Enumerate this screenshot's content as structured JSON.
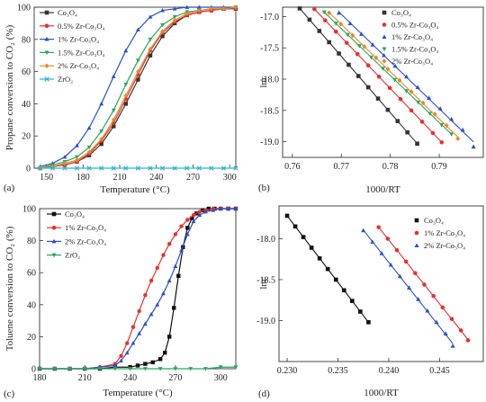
{
  "chart_data": [
    {
      "panel": "(a)",
      "type": "line",
      "xlabel": "Temperature (°C)",
      "ylabel": "Propane conversion to CO₂ (%)",
      "xlim": [
        140,
        305
      ],
      "ylim": [
        0,
        100
      ],
      "xticks": [
        150,
        180,
        210,
        240,
        270,
        300
      ],
      "yticks": [
        0,
        20,
        40,
        60,
        80,
        100
      ],
      "legend_position": "top-left",
      "series": [
        {
          "name": "Co₃O₄",
          "color": "#333333",
          "marker": "square",
          "x": [
            145,
            155,
            165,
            175,
            185,
            195,
            205,
            215,
            225,
            235,
            245,
            255,
            265,
            275,
            285,
            295,
            305
          ],
          "y": [
            0,
            1,
            2,
            4,
            8,
            15,
            26,
            40,
            55,
            70,
            82,
            90,
            95,
            97,
            98,
            99,
            99
          ]
        },
        {
          "name": "0.5% Zr-Co₃O₄",
          "color": "#e8302f",
          "marker": "circle",
          "x": [
            145,
            155,
            165,
            175,
            185,
            195,
            205,
            215,
            225,
            235,
            245,
            255,
            265,
            275,
            285,
            295,
            305
          ],
          "y": [
            0,
            1,
            2,
            4,
            9,
            17,
            28,
            43,
            58,
            73,
            84,
            91,
            95,
            97,
            98,
            99,
            99
          ]
        },
        {
          "name": "1% Zr-Co₃O₄",
          "color": "#2b4fc8",
          "marker": "triangle-up",
          "x": [
            145,
            155,
            165,
            175,
            185,
            195,
            205,
            215,
            225,
            235,
            245,
            255,
            265,
            275,
            285,
            295,
            305
          ],
          "y": [
            1,
            3,
            7,
            14,
            25,
            40,
            57,
            73,
            86,
            94,
            98,
            99,
            100,
            100,
            100,
            100,
            100
          ]
        },
        {
          "name": "1.5% Zr-Co₃O₄",
          "color": "#2aa65a",
          "marker": "triangle-down",
          "x": [
            145,
            155,
            165,
            175,
            185,
            195,
            205,
            215,
            225,
            235,
            245,
            255,
            265,
            275,
            285,
            295,
            305
          ],
          "y": [
            0,
            2,
            4,
            7,
            13,
            23,
            36,
            52,
            67,
            80,
            89,
            94,
            97,
            98,
            99,
            99,
            100
          ]
        },
        {
          "name": "2% Zr-Co₃O₄",
          "color": "#e38b2a",
          "marker": "diamond",
          "x": [
            145,
            155,
            165,
            175,
            185,
            195,
            205,
            215,
            225,
            235,
            245,
            255,
            265,
            275,
            285,
            295,
            305
          ],
          "y": [
            0,
            1,
            3,
            5,
            10,
            18,
            30,
            45,
            60,
            74,
            85,
            92,
            96,
            98,
            99,
            99,
            100
          ]
        },
        {
          "name": "ZrO₂",
          "color": "#2fb3cf",
          "marker": "cross",
          "x": [
            145,
            155,
            165,
            175,
            185,
            195,
            205,
            215,
            225,
            235,
            245,
            255,
            265,
            275,
            285,
            295,
            305
          ],
          "y": [
            0,
            0,
            0,
            0,
            0,
            0,
            0,
            0,
            0,
            0,
            0,
            0,
            0,
            0,
            0,
            0,
            0
          ]
        }
      ]
    },
    {
      "panel": "(b)",
      "type": "scatter",
      "xlabel": "1000/RT",
      "ylabel": "lnr",
      "xlim": [
        0.758,
        0.799
      ],
      "ylim": [
        -19.25,
        -16.85
      ],
      "xticks": [
        0.76,
        0.77,
        0.78,
        0.79
      ],
      "yticks": [
        -17.0,
        -17.5,
        -18.0,
        -18.5,
        -19.0
      ],
      "legend_position": "top-right",
      "series": [
        {
          "name": "Co₃O₄",
          "color": "#333333",
          "marker": "square",
          "x": [
            0.7615,
            0.7635,
            0.7655,
            0.7675,
            0.7695,
            0.7715,
            0.7735,
            0.7755,
            0.7775,
            0.7795,
            0.7815,
            0.7835,
            0.7855
          ],
          "y": [
            -16.87,
            -17.05,
            -17.23,
            -17.41,
            -17.59,
            -17.77,
            -17.95,
            -18.13,
            -18.31,
            -18.49,
            -18.67,
            -18.85,
            -19.03
          ]
        },
        {
          "name": "0.5% Zr-Co₃O₄",
          "color": "#e8302f",
          "marker": "circle",
          "x": [
            0.7645,
            0.7667,
            0.7689,
            0.7711,
            0.7733,
            0.7755,
            0.7777,
            0.7799,
            0.7821,
            0.7843,
            0.7865,
            0.7887,
            0.7905
          ],
          "y": [
            -16.88,
            -17.06,
            -17.24,
            -17.42,
            -17.6,
            -17.78,
            -17.96,
            -18.14,
            -18.32,
            -18.5,
            -18.68,
            -18.86,
            -19.01
          ]
        },
        {
          "name": "1% Zr-Co₃O₄",
          "color": "#2b4fc8",
          "marker": "triangle-up",
          "x": [
            0.7695,
            0.7718,
            0.7741,
            0.7764,
            0.7787,
            0.781,
            0.7833,
            0.7856,
            0.7879,
            0.7902,
            0.7925,
            0.7948,
            0.797
          ],
          "y": [
            -16.94,
            -17.11,
            -17.28,
            -17.45,
            -17.62,
            -17.79,
            -17.96,
            -18.13,
            -18.3,
            -18.47,
            -18.64,
            -18.81,
            -19.08
          ]
        },
        {
          "name": "1.5% Zr-Co₃O₄",
          "color": "#2aa65a",
          "marker": "triangle-down",
          "x": [
            0.7665,
            0.7689,
            0.7713,
            0.7737,
            0.7761,
            0.7785,
            0.7809,
            0.7833,
            0.7857,
            0.7881,
            0.7905,
            0.7925
          ],
          "y": [
            -16.93,
            -17.11,
            -17.29,
            -17.47,
            -17.65,
            -17.83,
            -18.01,
            -18.19,
            -18.37,
            -18.55,
            -18.73,
            -18.88
          ]
        },
        {
          "name": "2% Zr-Co₃O₄",
          "color": "#e38b2a",
          "marker": "diamond",
          "x": [
            0.7675,
            0.7699,
            0.7723,
            0.7747,
            0.7771,
            0.7795,
            0.7819,
            0.7843,
            0.7867,
            0.7891,
            0.7915,
            0.7938
          ],
          "y": [
            -16.94,
            -17.12,
            -17.3,
            -17.48,
            -17.66,
            -17.84,
            -18.02,
            -18.2,
            -18.38,
            -18.56,
            -18.74,
            -18.95
          ]
        }
      ]
    },
    {
      "panel": "(c)",
      "type": "line",
      "xlabel": "Temperature (°C)",
      "ylabel": "Toluene conversion to CO₂ (%)",
      "xlim": [
        180,
        310
      ],
      "ylim": [
        0,
        100
      ],
      "xticks": [
        180,
        210,
        240,
        270,
        300
      ],
      "yticks": [
        0,
        20,
        40,
        60,
        80,
        100
      ],
      "legend_position": "top-left",
      "series": [
        {
          "name": "Co₃O₄",
          "color": "#111111",
          "marker": "square",
          "x": [
            180,
            190,
            200,
            210,
            220,
            230,
            240,
            245,
            250,
            255,
            260,
            263,
            266,
            269,
            272,
            275,
            278,
            281,
            284,
            288,
            292,
            296,
            300,
            305,
            310
          ],
          "y": [
            0,
            0,
            0,
            0,
            0,
            1,
            1,
            2,
            3,
            4,
            6,
            10,
            20,
            38,
            58,
            76,
            88,
            94,
            97,
            99,
            100,
            100,
            100,
            100,
            100
          ]
        },
        {
          "name": "1% Zr-Co₃O₄",
          "color": "#e8302f",
          "marker": "circle",
          "x": [
            180,
            190,
            200,
            210,
            220,
            230,
            234,
            238,
            242,
            246,
            250,
            254,
            258,
            262,
            266,
            270,
            274,
            278,
            282,
            286,
            290,
            295,
            300,
            305,
            310
          ],
          "y": [
            0,
            0,
            0,
            0,
            1,
            3,
            8,
            16,
            26,
            36,
            46,
            55,
            63,
            71,
            78,
            84,
            89,
            93,
            96,
            98,
            99,
            100,
            100,
            100,
            100
          ]
        },
        {
          "name": "2% Zr-Co₃O₄",
          "color": "#2b4fc8",
          "marker": "triangle-up",
          "x": [
            180,
            190,
            200,
            210,
            220,
            230,
            234,
            238,
            242,
            246,
            250,
            254,
            258,
            262,
            266,
            270,
            274,
            278,
            282,
            286,
            290,
            295,
            300,
            305,
            310
          ],
          "y": [
            0,
            0,
            0,
            0,
            1,
            2,
            5,
            10,
            16,
            22,
            28,
            34,
            40,
            47,
            55,
            64,
            74,
            84,
            92,
            96,
            98,
            99,
            100,
            100,
            100
          ]
        },
        {
          "name": "ZrO₂",
          "color": "#2aa65a",
          "marker": "triangle-down",
          "x": [
            180,
            190,
            200,
            210,
            220,
            230,
            240,
            250,
            260,
            270,
            280,
            290,
            300,
            310
          ],
          "y": [
            0,
            0,
            0,
            0,
            0,
            0,
            0,
            0,
            0,
            0,
            0,
            0,
            1,
            1
          ]
        }
      ]
    },
    {
      "panel": "(d)",
      "type": "scatter",
      "xlabel": "1000/RT",
      "ylabel": "lnr",
      "xlim": [
        0.2292,
        0.2493
      ],
      "ylim": [
        -19.5,
        -17.6
      ],
      "xticks": [
        0.23,
        0.235,
        0.24,
        0.245
      ],
      "yticks": [
        -18.0,
        -18.5,
        -19.0
      ],
      "legend_position": "top-right",
      "series": [
        {
          "name": "Co₃O₄",
          "color": "#111111",
          "marker": "square",
          "x": [
            0.23,
            0.2308,
            0.2316,
            0.2324,
            0.2332,
            0.234,
            0.2348,
            0.2356,
            0.2364,
            0.2372,
            0.238
          ],
          "y": [
            -17.72,
            -17.85,
            -17.98,
            -18.11,
            -18.24,
            -18.37,
            -18.5,
            -18.63,
            -18.76,
            -18.89,
            -19.02
          ]
        },
        {
          "name": "1% Zr-Co₃O₄",
          "color": "#e8302f",
          "marker": "circle",
          "x": [
            0.239,
            0.2399,
            0.2408,
            0.2417,
            0.2426,
            0.2435,
            0.2444,
            0.2453,
            0.2462,
            0.2471,
            0.2478
          ],
          "y": [
            -17.86,
            -18.0,
            -18.14,
            -18.28,
            -18.42,
            -18.56,
            -18.7,
            -18.84,
            -18.98,
            -19.12,
            -19.24
          ]
        },
        {
          "name": "2% Zr-Co₃O₄",
          "color": "#2b4fc8",
          "marker": "triangle-up",
          "x": [
            0.2375,
            0.2384,
            0.2393,
            0.2402,
            0.2411,
            0.242,
            0.2429,
            0.2438,
            0.2447,
            0.2456,
            0.2463
          ],
          "y": [
            -17.9,
            -18.04,
            -18.18,
            -18.32,
            -18.46,
            -18.6,
            -18.74,
            -18.88,
            -19.02,
            -19.16,
            -19.31
          ]
        }
      ]
    }
  ]
}
